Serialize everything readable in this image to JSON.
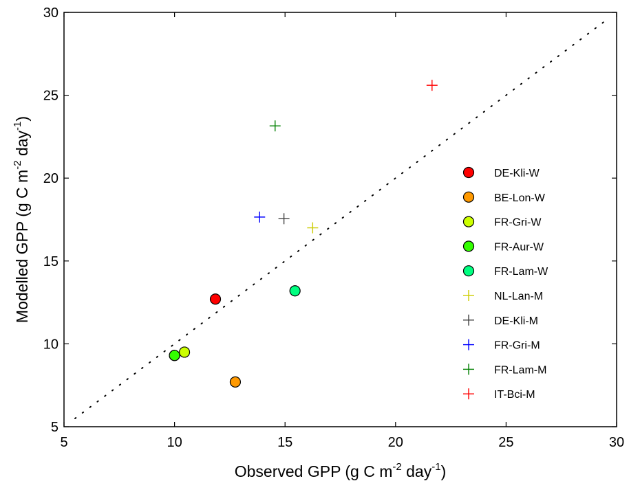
{
  "chart_data": {
    "type": "scatter",
    "xlabel": {
      "pre": "Observed GPP (g C m",
      "exp1": "-2",
      "mid": " day",
      "exp2": "-1",
      "post": ")"
    },
    "ylabel": {
      "pre": "Modelled GPP (g C m",
      "exp1": "-2",
      "mid": " day",
      "exp2": "-1",
      "post": ")"
    },
    "xlim": [
      5,
      30
    ],
    "ylim": [
      5,
      30
    ],
    "xticks": [
      5,
      10,
      15,
      20,
      25,
      30
    ],
    "yticks": [
      5,
      10,
      15,
      20,
      25,
      30
    ],
    "grid": false,
    "legend_position": "right",
    "reference_line": {
      "style": "dotted",
      "from": [
        5.5,
        5.5
      ],
      "to": [
        29.5,
        29.5
      ]
    },
    "series": [
      {
        "name": "DE-Kli-W",
        "marker": "circle",
        "color": "#ff0000",
        "x": 11.85,
        "y": 12.7
      },
      {
        "name": "BE-Lon-W",
        "marker": "circle",
        "color": "#ff9900",
        "x": 12.75,
        "y": 7.7
      },
      {
        "name": "FR-Gri-W",
        "marker": "circle",
        "color": "#ccff00",
        "points": [
          {
            "x": 10.0,
            "y": 9.3
          },
          {
            "x": 10.45,
            "y": 9.5
          }
        ]
      },
      {
        "name": "FR-Aur-W",
        "marker": "circle",
        "color": "#33ff00",
        "x": 10.0,
        "y": 9.3
      },
      {
        "name": "FR-Lam-W",
        "marker": "circle",
        "color": "#00ff80",
        "x": 15.45,
        "y": 13.2
      },
      {
        "name": "NL-Lan-M",
        "marker": "plus",
        "color": "#cccc00",
        "x": 16.25,
        "y": 17.0
      },
      {
        "name": "DE-Kli-M",
        "marker": "plus",
        "color": "#404040",
        "x": 14.95,
        "y": 17.55
      },
      {
        "name": "FR-Gri-M",
        "marker": "plus",
        "color": "#0000ff",
        "x": 13.85,
        "y": 17.65
      },
      {
        "name": "FR-Lam-M",
        "marker": "plus",
        "color": "#008000",
        "x": 14.55,
        "y": 23.15
      },
      {
        "name": "IT-Bci-M",
        "marker": "plus",
        "color": "#ff0000",
        "x": 21.65,
        "y": 25.6
      }
    ]
  }
}
